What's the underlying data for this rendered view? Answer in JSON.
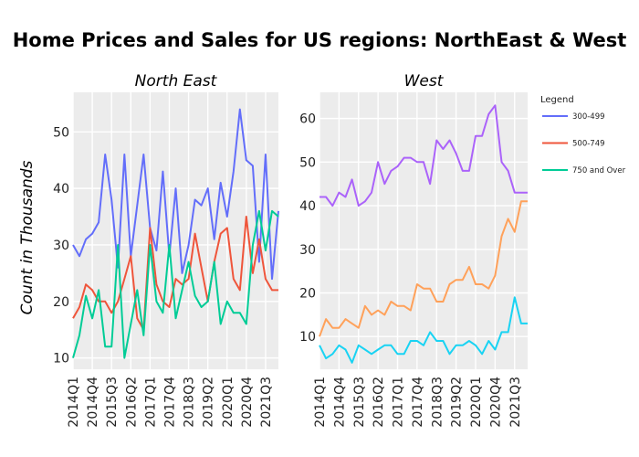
{
  "chart_data": {
    "type": "line",
    "title": "Home Prices and Sales for US regions: NorthEast & West",
    "ylabel": "Count in Thousands",
    "legend_title": "Legend",
    "legend_position": "top-right",
    "x": [
      "2014Q1",
      "2014Q2",
      "2014Q3",
      "2014Q4",
      "2015Q1",
      "2015Q2",
      "2015Q3",
      "2015Q4",
      "2016Q1",
      "2016Q2",
      "2016Q3",
      "2016Q4",
      "2017Q1",
      "2017Q2",
      "2017Q3",
      "2017Q4",
      "2018Q1",
      "2018Q2",
      "2018Q3",
      "2018Q4",
      "2019Q1",
      "2019Q2",
      "2019Q3",
      "2019Q4",
      "2020Q1",
      "2020Q2",
      "2020Q3",
      "2020Q4",
      "2021Q1",
      "2021Q2",
      "2021Q3",
      "2021Q4",
      "2022Q1"
    ],
    "x_tick_labels": [
      "2014Q1",
      "2014Q4",
      "2015Q3",
      "2016Q2",
      "2017Q1",
      "2017Q4",
      "2018Q3",
      "2019Q2",
      "2020Q1",
      "2020Q4",
      "2021Q3"
    ],
    "panels": [
      {
        "subtitle": "North East",
        "ylim": [
          8,
          57
        ],
        "yticks": [
          10,
          20,
          30,
          40,
          50
        ],
        "series": [
          {
            "name": "300-499",
            "color": "#636efa",
            "values": [
              30,
              28,
              31,
              32,
              34,
              46,
              38,
              26,
              46,
              28,
              37,
              46,
              33,
              29,
              43,
              28,
              40,
              25,
              30,
              38,
              37,
              40,
              31,
              41,
              35,
              43,
              54,
              45,
              44,
              27,
              46,
              24,
              36
            ]
          },
          {
            "name": "500-749",
            "color": "#ef553b",
            "values": [
              17,
              19,
              23,
              22,
              20,
              20,
              18,
              20,
              24,
              28,
              17,
              15,
              33,
              23,
              20,
              19,
              24,
              23,
              24,
              32,
              26,
              20,
              27,
              32,
              33,
              24,
              22,
              35,
              25,
              31,
              24,
              22,
              22
            ]
          },
          {
            "name": "750 and Over",
            "color": "#00cc96",
            "values": [
              10,
              14,
              21,
              17,
              22,
              12,
              12,
              30,
              10,
              16,
              22,
              14,
              30,
              20,
              18,
              30,
              17,
              22,
              27,
              21,
              19,
              20,
              27,
              16,
              20,
              18,
              18,
              16,
              30,
              36,
              29,
              36,
              35
            ]
          }
        ]
      },
      {
        "subtitle": "West",
        "ylim": [
          2.5,
          66
        ],
        "yticks": [
          10,
          20,
          30,
          40,
          50,
          60
        ],
        "series": [
          {
            "name": "300-499",
            "color": "#ab63fa",
            "values": [
              42,
              42,
              40,
              43,
              42,
              46,
              40,
              41,
              43,
              50,
              45,
              48,
              49,
              51,
              51,
              50,
              50,
              45,
              55,
              53,
              55,
              52,
              48,
              48,
              56,
              56,
              61,
              63,
              50,
              48,
              43,
              43,
              43
            ]
          },
          {
            "name": "500-749",
            "color": "#ffa15a",
            "values": [
              10,
              14,
              12,
              12,
              14,
              13,
              12,
              17,
              15,
              16,
              15,
              18,
              17,
              17,
              16,
              22,
              21,
              21,
              18,
              18,
              22,
              23,
              23,
              26,
              22,
              22,
              21,
              24,
              33,
              37,
              34,
              41,
              41
            ]
          },
          {
            "name": "750 and Over",
            "color": "#19d3f3",
            "values": [
              8,
              5,
              6,
              8,
              7,
              4,
              8,
              7,
              6,
              7,
              8,
              8,
              6,
              6,
              9,
              9,
              8,
              11,
              9,
              9,
              6,
              8,
              8,
              9,
              8,
              6,
              9,
              7,
              11,
              11,
              19,
              13,
              13
            ]
          }
        ]
      }
    ],
    "legend": [
      {
        "label": "300-499",
        "color": "#636efa"
      },
      {
        "label": "500-749",
        "color": "#ef553b"
      },
      {
        "label": "750 and Over",
        "color": "#00cc96"
      }
    ]
  }
}
